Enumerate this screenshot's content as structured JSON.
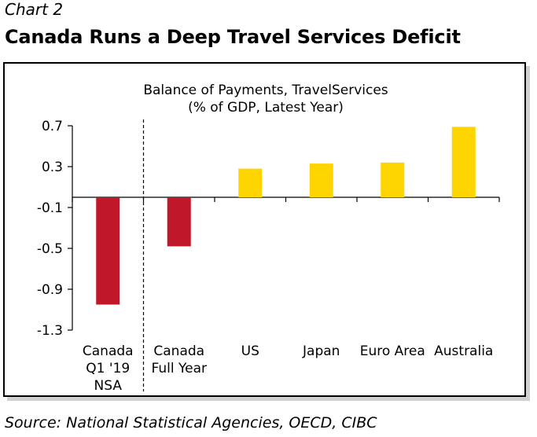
{
  "header": {
    "chart_label": "Chart 2",
    "headline": "Canada Runs a Deep Travel Services Deficit"
  },
  "footer": {
    "source": "Source: National Statistical Agencies, OECD, CIBC"
  },
  "colors": {
    "canada": "#c0172a",
    "others": "#ffd500"
  },
  "chart_data": {
    "type": "bar",
    "title": "Balance of Payments, TravelServices",
    "subtitle": "(% of GDP, Latest Year)",
    "xlabel": "",
    "ylabel": "",
    "ylim": [
      -1.3,
      0.7
    ],
    "yticks": [
      0.7,
      0.3,
      -0.1,
      -0.5,
      -0.9,
      -1.3
    ],
    "ytick_labels": [
      "0.7",
      "0.3",
      "-0.1",
      "-0.5",
      "-0.9",
      "-1.3"
    ],
    "categories": [
      [
        "Canada",
        "Q1 '19",
        "NSA"
      ],
      [
        "Canada",
        "Full Year"
      ],
      [
        "US"
      ],
      [
        "Japan"
      ],
      [
        "Euro Area"
      ],
      [
        "Australia"
      ]
    ],
    "values": [
      -1.05,
      -0.48,
      0.28,
      0.33,
      0.34,
      0.69
    ],
    "bar_colors": [
      "#c0172a",
      "#c0172a",
      "#ffd500",
      "#ffd500",
      "#ffd500",
      "#ffd500"
    ],
    "grid": false,
    "legend": "none",
    "separator_after_category": 0
  }
}
